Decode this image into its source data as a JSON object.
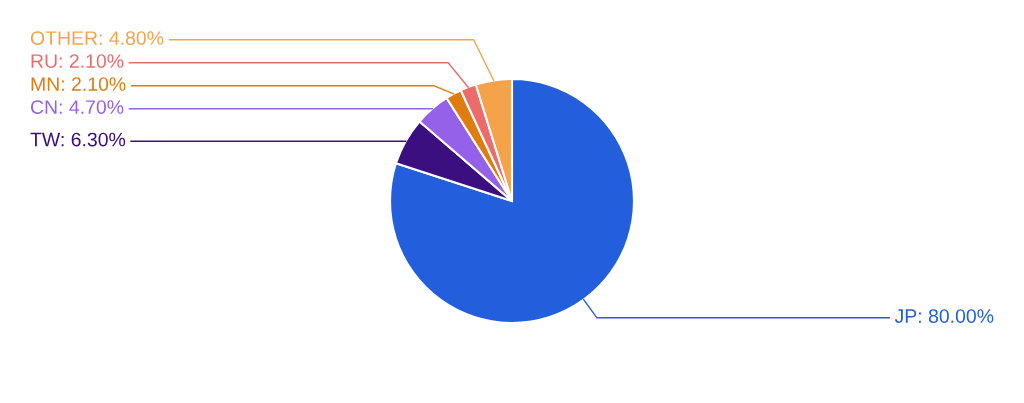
{
  "chart_data": {
    "type": "pie",
    "categories": [
      "JP",
      "TW",
      "CN",
      "MN",
      "RU",
      "OTHER"
    ],
    "values": [
      80,
      6.3,
      4.7,
      2.1,
      2.1,
      4.8
    ],
    "value_labels": [
      "80.00%",
      "6.30%",
      "4.70%",
      "2.10%",
      "2.10%",
      "4.80%"
    ],
    "colors": [
      "#235fdc",
      "#3c0f80",
      "#9561e8",
      "#e07b0f",
      "#ee6b6b",
      "#f4a34a"
    ],
    "legend": false
  }
}
